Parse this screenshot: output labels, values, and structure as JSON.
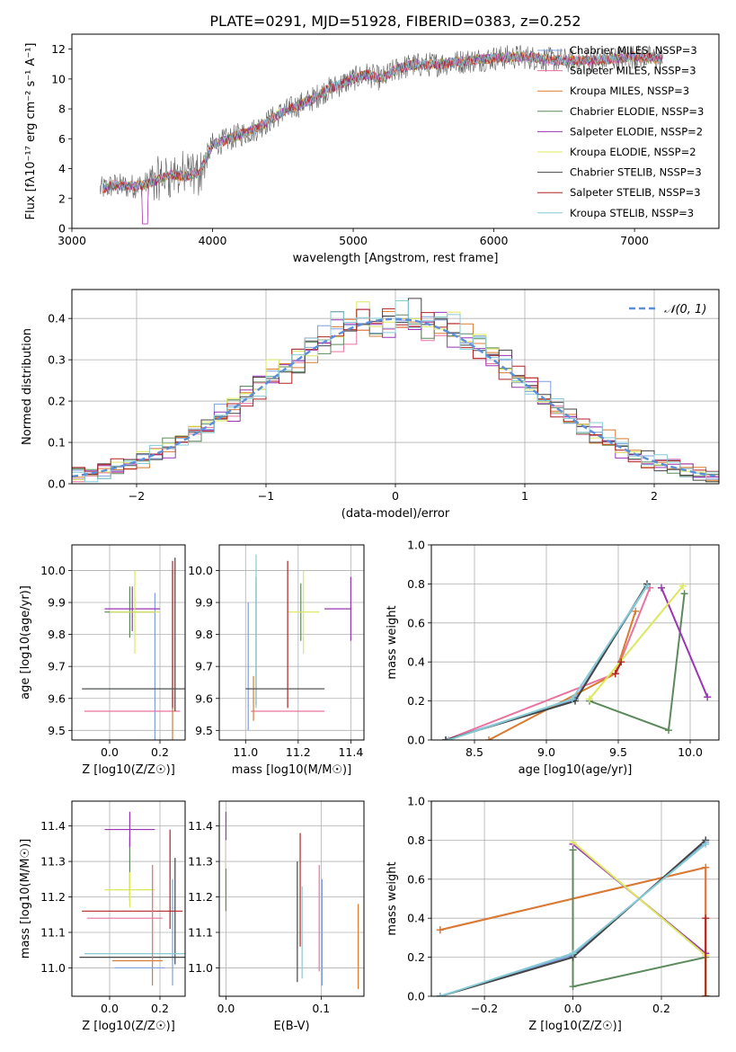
{
  "figure_title": "PLATE=0291, MJD=51928, FIBERID=0383, z=0.252",
  "series_colors": {
    "Chabrier MILES": "#7f9fdf",
    "Salpeter MILES": "#e8739f",
    "Kroupa MILES": "#d97b30",
    "Chabrier ELODIE": "#5c8a5c",
    "Salpeter ELODIE": "#9b35b5",
    "Kroupa ELODIE": "#dbe85a",
    "Chabrier STELIB": "#444444",
    "Salpeter STELIB": "#b22222",
    "Kroupa STELIB": "#86cbd6"
  },
  "chart_data": [
    {
      "id": "spectrum",
      "type": "line",
      "xlabel": "wavelength [Angstrom, rest frame]",
      "ylabel": "Flux [fλ10⁻¹⁷ erg cm⁻² s⁻¹ A⁻¹]",
      "xlim": [
        3000,
        7600
      ],
      "ylim": [
        0,
        13
      ],
      "xticks": [
        3000,
        4000,
        5000,
        6000,
        7000
      ],
      "yticks": [
        0,
        2,
        4,
        6,
        8,
        10,
        12
      ],
      "grid": false,
      "legend_position": "top-right",
      "legend": [
        {
          "label": "Chabrier MILES, NSSP=3",
          "series": "Chabrier MILES"
        },
        {
          "label": "Salpeter MILES, NSSP=3",
          "series": "Salpeter MILES"
        },
        {
          "label": "Kroupa MILES, NSSP=3",
          "series": "Kroupa MILES"
        },
        {
          "label": "Chabrier ELODIE, NSSP=3",
          "series": "Chabrier ELODIE"
        },
        {
          "label": "Salpeter ELODIE, NSSP=2",
          "series": "Salpeter ELODIE"
        },
        {
          "label": "Kroupa ELODIE, NSSP=2",
          "series": "Kroupa ELODIE"
        },
        {
          "label": "Chabrier STELIB, NSSP=3",
          "series": "Chabrier STELIB"
        },
        {
          "label": "Salpeter STELIB, NSSP=3",
          "series": "Salpeter STELIB"
        },
        {
          "label": "Kroupa STELIB, NSSP=3",
          "series": "Kroupa STELIB"
        }
      ],
      "continuum_x": [
        3200,
        3300,
        3400,
        3500,
        3600,
        3700,
        3800,
        3900,
        3950,
        4000,
        4100,
        4200,
        4300,
        4400,
        4500,
        4600,
        4700,
        4800,
        4900,
        5000,
        5100,
        5200,
        5300,
        5400,
        5600,
        5800,
        6000,
        6200,
        6400,
        6600,
        6800,
        7000,
        7200
      ],
      "continuum_y": [
        2.6,
        2.9,
        2.8,
        2.9,
        3.2,
        3.6,
        3.5,
        3.7,
        4.6,
        5.6,
        5.9,
        6.3,
        6.6,
        7.2,
        7.8,
        8.2,
        8.6,
        9.2,
        9.6,
        10.0,
        10.3,
        10.0,
        10.6,
        10.9,
        11.0,
        11.2,
        11.4,
        11.5,
        11.3,
        11.2,
        11.3,
        11.5,
        11.3
      ]
    },
    {
      "id": "residuals",
      "type": "line",
      "xlabel": "(data-model)/error",
      "ylabel": "Normed distribution",
      "xlim": [
        -2.5,
        2.5
      ],
      "ylim": [
        0,
        0.47
      ],
      "xticks": [
        -2,
        -1,
        0,
        1,
        2
      ],
      "yticks": [
        0.0,
        0.1,
        0.2,
        0.3,
        0.4
      ],
      "grid": true,
      "legend_position": "top-right",
      "gaussian_label": "𝒩(0, 1)",
      "gaussian_color": "#5b8fd9"
    },
    {
      "id": "age_vs_Z",
      "type": "scatter",
      "xlabel": "Z [log10(Z/Z☉)]",
      "ylabel": "age  [log10(age/yr)]",
      "xlim": [
        -0.15,
        0.3
      ],
      "ylim": [
        9.47,
        10.08
      ],
      "xticks": [
        0.0,
        0.2
      ],
      "yticks": [
        9.5,
        9.6,
        9.7,
        9.8,
        9.9,
        10.0
      ],
      "grid": true,
      "points": [
        {
          "series": "Chabrier MILES",
          "x": 0.18,
          "xerr": 0.0,
          "y": 9.6,
          "yerr": 0.33
        },
        {
          "series": "Salpeter MILES",
          "x": 0.09,
          "xerr": 0.19,
          "y": 9.56,
          "yerr": 0.0
        },
        {
          "series": "Kroupa MILES",
          "x": 0.25,
          "xerr": 0.0,
          "y": 9.6,
          "yerr": 0.4
        },
        {
          "series": "Chabrier ELODIE",
          "x": 0.08,
          "xerr": 0.1,
          "y": 9.87,
          "yerr": 0.08
        },
        {
          "series": "Salpeter ELODIE",
          "x": 0.09,
          "xerr": 0.11,
          "y": 9.88,
          "yerr": 0.07
        },
        {
          "series": "Kroupa ELODIE",
          "x": 0.1,
          "xerr": 0.1,
          "y": 9.87,
          "yerr": 0.13
        },
        {
          "series": "Chabrier STELIB",
          "x": 0.26,
          "xerr": 0.0,
          "y": 9.8,
          "yerr": 0.24
        },
        {
          "series": "Salpeter STELIB",
          "x": 0.25,
          "xerr": 0.0,
          "y": 9.8,
          "yerr": 0.23
        },
        {
          "series": "Kroupa STELIB",
          "x": 0.09,
          "xerr": 0.2,
          "y": 9.63,
          "yerr": 0.0
        },
        {
          "series": "Chabrier STELIB",
          "x": 0.1,
          "xerr": 0.21,
          "y": 9.63,
          "yerr": 0.0
        }
      ]
    },
    {
      "id": "age_vs_mass",
      "type": "scatter",
      "xlabel": "mass [log10(M/M☉)]",
      "ylabel": "",
      "xlim": [
        10.9,
        11.45
      ],
      "ylim": [
        9.47,
        10.08
      ],
      "xticks": [
        11.0,
        11.2,
        11.4
      ],
      "yticks": [
        9.5,
        9.6,
        9.7,
        9.8,
        9.9,
        10.0
      ],
      "grid": true,
      "points": [
        {
          "series": "Chabrier MILES",
          "x": 11.01,
          "xerr": 0.0,
          "y": 9.7,
          "yerr": 0.2
        },
        {
          "series": "Salpeter MILES",
          "x": 11.16,
          "xerr": 0.14,
          "y": 9.56,
          "yerr": 0.0
        },
        {
          "series": "Kroupa MILES",
          "x": 11.03,
          "xerr": 0.0,
          "y": 9.6,
          "yerr": 0.07
        },
        {
          "series": "Chabrier ELODIE",
          "x": 11.21,
          "xerr": 0.0,
          "y": 9.87,
          "yerr": 0.09
        },
        {
          "series": "Salpeter ELODIE",
          "x": 11.4,
          "xerr": 0.0,
          "y": 9.88,
          "yerr": 0.1
        },
        {
          "series": "Kroupa ELODIE",
          "x": 11.22,
          "xerr": 0.06,
          "y": 9.87,
          "yerr": 0.13
        },
        {
          "series": "Chabrier STELIB",
          "x": 11.04,
          "xerr": 0.0,
          "y": 9.78,
          "yerr": 0.2
        },
        {
          "series": "Salpeter STELIB",
          "x": 11.16,
          "xerr": 0.0,
          "y": 9.8,
          "yerr": 0.23
        },
        {
          "series": "Kroupa STELIB",
          "x": 11.04,
          "xerr": 0.0,
          "y": 9.81,
          "yerr": 0.24
        },
        {
          "series": "Chabrier STELIB",
          "x": 11.15,
          "xerr": 0.15,
          "y": 9.63,
          "yerr": 0.0
        },
        {
          "series": "Salpeter ELODIE",
          "x": 11.35,
          "xerr": 0.05,
          "y": 9.88,
          "yerr": 0.0
        },
        {
          "series": "Salpeter STELIB",
          "x": 11.2,
          "xerr": 0.0,
          "y": 9.63,
          "yerr": 0.0
        }
      ]
    },
    {
      "id": "weight_vs_age",
      "type": "line",
      "xlabel": "age  [log10(age/yr)]",
      "ylabel": "mass weight",
      "xlim": [
        8.2,
        10.2
      ],
      "ylim": [
        0,
        1.0
      ],
      "xticks": [
        8.5,
        9.0,
        9.5,
        10.0
      ],
      "yticks": [
        0.0,
        0.2,
        0.4,
        0.6,
        0.8,
        1.0
      ],
      "grid": true,
      "lines": [
        {
          "series": "Chabrier MILES",
          "x": [
            8.3,
            9.2,
            9.7
          ],
          "y": [
            0.0,
            0.21,
            0.79
          ]
        },
        {
          "series": "Salpeter MILES",
          "x": [
            8.3,
            9.48,
            9.72
          ],
          "y": [
            0.0,
            0.34,
            0.78
          ]
        },
        {
          "series": "Kroupa MILES",
          "x": [
            8.6,
            9.48,
            9.62
          ],
          "y": [
            0.0,
            0.34,
            0.66
          ]
        },
        {
          "series": "Chabrier ELODIE",
          "x": [
            9.3,
            9.85,
            9.96
          ],
          "y": [
            0.2,
            0.05,
            0.75
          ]
        },
        {
          "series": "Salpeter ELODIE",
          "x": [
            9.8,
            10.12
          ],
          "y": [
            0.78,
            0.22
          ]
        },
        {
          "series": "Kroupa ELODIE",
          "x": [
            9.3,
            9.95
          ],
          "y": [
            0.21,
            0.79
          ]
        },
        {
          "series": "Chabrier STELIB",
          "x": [
            8.3,
            9.2,
            9.7
          ],
          "y": [
            0.0,
            0.2,
            0.8
          ]
        },
        {
          "series": "Salpeter STELIB",
          "x": [
            9.48,
            9.52
          ],
          "y": [
            0.34,
            0.4
          ]
        },
        {
          "series": "Kroupa STELIB",
          "x": [
            8.32,
            9.18,
            9.7
          ],
          "y": [
            0.0,
            0.21,
            0.79
          ]
        }
      ]
    },
    {
      "id": "mass_vs_Z",
      "type": "scatter",
      "xlabel": "Z [log10(Z/Z☉)]",
      "ylabel": "mass [log10(M/M☉)]",
      "xlim": [
        -0.15,
        0.3
      ],
      "ylim": [
        10.92,
        11.47
      ],
      "xticks": [
        0.0,
        0.2
      ],
      "yticks": [
        11.0,
        11.1,
        11.2,
        11.3,
        11.4
      ],
      "grid": true,
      "points": [
        {
          "series": "Chabrier MILES",
          "x": 0.25,
          "xerr": 0.0,
          "y": 11.1,
          "yerr": 0.15
        },
        {
          "series": "Salpeter MILES",
          "x": 0.06,
          "xerr": 0.15,
          "y": 11.14,
          "yerr": 0.0
        },
        {
          "series": "Kroupa MILES",
          "x": 0.17,
          "xerr": 0.0,
          "y": 11.12,
          "yerr": 0.17
        },
        {
          "series": "Chabrier ELODIE",
          "x": 0.08,
          "xerr": 0.0,
          "y": 11.28,
          "yerr": 0.09
        },
        {
          "series": "Salpeter ELODIE",
          "x": 0.08,
          "xerr": 0.1,
          "y": 11.39,
          "yerr": 0.05
        },
        {
          "series": "Kroupa ELODIE",
          "x": 0.08,
          "xerr": 0.1,
          "y": 11.22,
          "yerr": 0.05
        },
        {
          "series": "Chabrier STELIB",
          "x": 0.26,
          "xerr": 0.0,
          "y": 11.16,
          "yerr": 0.15
        },
        {
          "series": "Salpeter STELIB",
          "x": 0.09,
          "xerr": 0.2,
          "y": 11.16,
          "yerr": 0.0
        },
        {
          "series": "Kroupa STELIB",
          "x": 0.1,
          "xerr": 0.2,
          "y": 11.04,
          "yerr": 0.0
        },
        {
          "series": "Chabrier STELIB",
          "x": 0.09,
          "xerr": 0.21,
          "y": 11.03,
          "yerr": 0.0
        },
        {
          "series": "Kroupa MILES",
          "x": 0.11,
          "xerr": 0.1,
          "y": 11.02,
          "yerr": 0.0
        },
        {
          "series": "Chabrier MILES",
          "x": 0.12,
          "xerr": 0.1,
          "y": 11.0,
          "yerr": 0.0
        },
        {
          "series": "Salpeter STELIB",
          "x": 0.24,
          "xerr": 0.0,
          "y": 11.25,
          "yerr": 0.14
        },
        {
          "series": "Salpeter MILES",
          "x": 0.17,
          "xerr": 0.0,
          "y": 11.15,
          "yerr": 0.14
        }
      ]
    },
    {
      "id": "mass_vs_EBV",
      "type": "scatter",
      "xlabel": "E(B-V)",
      "ylabel": "",
      "xlim": [
        -0.007,
        0.145
      ],
      "ylim": [
        10.92,
        11.47
      ],
      "xticks": [
        0.0,
        0.1
      ],
      "yticks": [
        11.0,
        11.1,
        11.2,
        11.3,
        11.4
      ],
      "grid": true,
      "points": [
        {
          "series": "Salpeter ELODIE",
          "x": 0.0,
          "xerr": 0.0,
          "y": 11.36,
          "yerr": 0.08
        },
        {
          "series": "Kroupa ELODIE",
          "x": 0.0,
          "xerr": 0.0,
          "y": 11.26,
          "yerr": 0.1
        },
        {
          "series": "Chabrier ELODIE",
          "x": 0.0,
          "xerr": 0.0,
          "y": 11.22,
          "yerr": 0.06
        },
        {
          "series": "Chabrier STELIB",
          "x": 0.075,
          "xerr": 0.0,
          "y": 11.13,
          "yerr": 0.17
        },
        {
          "series": "Salpeter STELIB",
          "x": 0.078,
          "xerr": 0.0,
          "y": 11.22,
          "yerr": 0.16
        },
        {
          "series": "Kroupa STELIB",
          "x": 0.08,
          "xerr": 0.0,
          "y": 11.1,
          "yerr": 0.13
        },
        {
          "series": "Salpeter MILES",
          "x": 0.098,
          "xerr": 0.0,
          "y": 11.14,
          "yerr": 0.15
        },
        {
          "series": "Chabrier MILES",
          "x": 0.101,
          "xerr": 0.0,
          "y": 11.1,
          "yerr": 0.15
        },
        {
          "series": "Kroupa MILES",
          "x": 0.139,
          "xerr": 0.0,
          "y": 11.06,
          "yerr": 0.12
        }
      ]
    },
    {
      "id": "weight_vs_Z",
      "type": "line",
      "xlabel": "Z [log10(Z/Z☉)]",
      "ylabel": "mass weight",
      "xlim": [
        -0.32,
        0.33
      ],
      "ylim": [
        0,
        1.0
      ],
      "xticks": [
        -0.2,
        0.0,
        0.2
      ],
      "yticks": [
        0.0,
        0.2,
        0.4,
        0.6,
        0.8,
        1.0
      ],
      "grid": true,
      "lines": [
        {
          "series": "Chabrier MILES",
          "x": [
            -0.3,
            0.0,
            0.3
          ],
          "y": [
            0.0,
            0.21,
            0.79
          ]
        },
        {
          "series": "Salpeter MILES",
          "x": [
            -0.3,
            0.3,
            0.3
          ],
          "y": [
            0.34,
            0.66,
            0.0
          ]
        },
        {
          "series": "Kroupa MILES",
          "x": [
            -0.3,
            0.3,
            0.3
          ],
          "y": [
            0.34,
            0.66,
            0.0
          ]
        },
        {
          "series": "Chabrier ELODIE",
          "x": [
            0.0,
            0.0,
            0.3,
            0.3
          ],
          "y": [
            0.75,
            0.05,
            0.2,
            0.0
          ]
        },
        {
          "series": "Salpeter ELODIE",
          "x": [
            0.0,
            0.3
          ],
          "y": [
            0.78,
            0.22
          ]
        },
        {
          "series": "Kroupa ELODIE",
          "x": [
            0.0,
            0.3,
            0.3
          ],
          "y": [
            0.79,
            0.21,
            0.0
          ]
        },
        {
          "series": "Chabrier STELIB",
          "x": [
            -0.3,
            0.0,
            0.3
          ],
          "y": [
            0.0,
            0.2,
            0.8
          ]
        },
        {
          "series": "Salpeter STELIB",
          "x": [
            0.3,
            0.3
          ],
          "y": [
            0.0,
            0.4
          ]
        },
        {
          "series": "Kroupa STELIB",
          "x": [
            -0.3,
            0.0,
            0.3
          ],
          "y": [
            0.0,
            0.22,
            0.78
          ]
        }
      ]
    }
  ]
}
